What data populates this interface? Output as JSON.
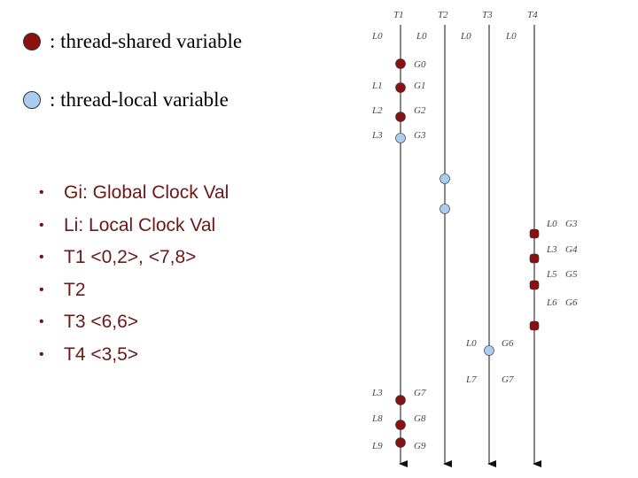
{
  "legend": {
    "shared": {
      "label": ": thread-shared variable",
      "color": "#8b1010"
    },
    "local": {
      "label": ": thread-local variable",
      "color": "#a9cdee"
    }
  },
  "bullets": [
    "Gi: Global Clock Val",
    "Li: Local Clock Val",
    "T1 <0,2>, <7,8>",
    "T2",
    "T3 <6,6>",
    "T4 <3,5>"
  ],
  "bullet_color": "#6b1717",
  "timeline": {
    "threads": [
      {
        "name": "T1",
        "initial_local": "L0"
      },
      {
        "name": "T2",
        "initial_local": "L0"
      },
      {
        "name": "T3",
        "initial_local": "L0"
      },
      {
        "name": "T4",
        "initial_local": "L0"
      }
    ],
    "events": [
      {
        "thread": "T1",
        "kind": "shared",
        "global": "G0",
        "local": ""
      },
      {
        "thread": "T1",
        "kind": "shared",
        "global": "G1",
        "local": "L1"
      },
      {
        "thread": "T1",
        "kind": "shared",
        "global": "G2",
        "local": "L2"
      },
      {
        "thread": "T1",
        "kind": "local",
        "global": "G3",
        "local": "L3"
      },
      {
        "thread": "T2",
        "kind": "local",
        "global": "",
        "local": ""
      },
      {
        "thread": "T2",
        "kind": "local",
        "global": "",
        "local": ""
      },
      {
        "thread": "T4",
        "kind": "shared",
        "global": "G3",
        "local": "L0"
      },
      {
        "thread": "T4",
        "kind": "shared",
        "global": "G4",
        "local": "L3"
      },
      {
        "thread": "T4",
        "kind": "shared",
        "global": "G5",
        "local": "L5"
      },
      {
        "thread": "T4",
        "kind": "shared",
        "global": "G6",
        "local": "L6"
      },
      {
        "thread": "T3",
        "kind": "local",
        "global": "G6",
        "local": "L0"
      },
      {
        "thread": "T3",
        "kind": "none",
        "global": "G7",
        "local": "L7"
      },
      {
        "thread": "T1",
        "kind": "shared",
        "global": "G7",
        "local": "L3"
      },
      {
        "thread": "T1",
        "kind": "shared",
        "global": "G8",
        "local": "L8"
      },
      {
        "thread": "T1",
        "kind": "shared",
        "global": "G9",
        "local": "L9"
      }
    ]
  }
}
